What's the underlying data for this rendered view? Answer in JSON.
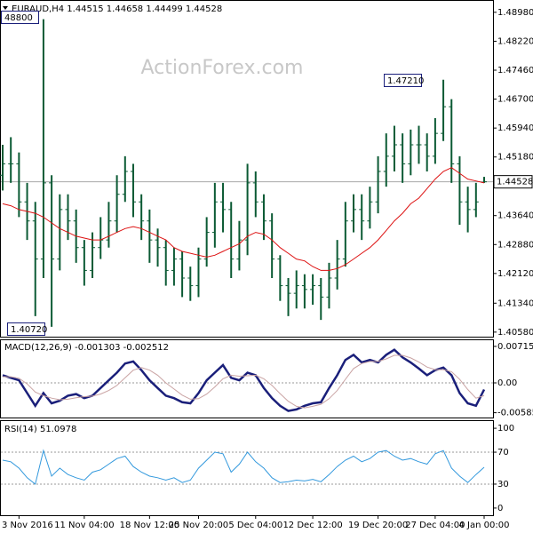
{
  "chart_data": [
    {
      "type": "ohlc",
      "title": "EURAUD,H4  1.44515 1.44658 1.44499 1.44528",
      "watermark": "ActionForex.com",
      "categories": [
        null,
        null,
        "3 Nov 2016",
        null,
        null,
        null,
        null,
        null,
        null,
        null,
        "11 Nov 04:00",
        null,
        null,
        null,
        null,
        null,
        null,
        null,
        "18 Nov 12:00",
        null,
        null,
        null,
        null,
        null,
        "25 Nov 20:00",
        null,
        null,
        null,
        null,
        null,
        null,
        "5 Dec 04:00",
        null,
        null,
        null,
        null,
        null,
        null,
        "12 Dec 12:00",
        null,
        null,
        null,
        null,
        null,
        null,
        null,
        "19 Dec 20:00",
        null,
        null,
        null,
        null,
        null,
        null,
        "27 Dec 04:00",
        null,
        null,
        null,
        null,
        null,
        "4 Jan 00:00"
      ],
      "open": [
        1.447,
        1.45,
        1.45,
        1.44,
        1.435,
        1.425,
        1.445,
        1.425,
        1.438,
        1.435,
        1.428,
        1.422,
        1.428,
        1.43,
        1.435,
        1.442,
        1.448,
        1.44,
        1.435,
        1.43,
        1.428,
        1.422,
        1.425,
        1.42,
        1.418,
        1.425,
        1.432,
        1.44,
        1.438,
        1.425,
        1.43,
        1.445,
        1.44,
        1.435,
        1.425,
        1.418,
        1.416,
        1.418,
        1.417,
        1.418,
        1.415,
        1.42,
        1.425,
        1.435,
        1.438,
        1.435,
        1.44,
        1.448,
        1.452,
        1.455,
        1.45,
        1.455,
        1.455,
        1.452,
        1.458,
        1.465,
        1.45,
        1.44,
        1.438,
        1.44515
      ],
      "high": [
        1.455,
        1.457,
        1.453,
        1.445,
        1.44,
        1.488,
        1.447,
        1.442,
        1.442,
        1.438,
        1.43,
        1.432,
        1.436,
        1.44,
        1.447,
        1.452,
        1.45,
        1.442,
        1.438,
        1.433,
        1.43,
        1.428,
        1.427,
        1.423,
        1.428,
        1.436,
        1.445,
        1.445,
        1.44,
        1.435,
        1.45,
        1.448,
        1.442,
        1.437,
        1.426,
        1.42,
        1.422,
        1.421,
        1.421,
        1.42,
        1.424,
        1.43,
        1.44,
        1.442,
        1.442,
        1.444,
        1.452,
        1.458,
        1.46,
        1.458,
        1.459,
        1.46,
        1.458,
        1.462,
        1.4721,
        1.467,
        1.452,
        1.444,
        1.445,
        1.44658
      ],
      "low": [
        1.443,
        1.445,
        1.436,
        1.43,
        1.41,
        1.42,
        1.4072,
        1.422,
        1.43,
        1.424,
        1.418,
        1.42,
        1.425,
        1.428,
        1.432,
        1.44,
        1.436,
        1.43,
        1.424,
        1.423,
        1.418,
        1.418,
        1.415,
        1.414,
        1.415,
        1.423,
        1.428,
        1.432,
        1.42,
        1.422,
        1.426,
        1.436,
        1.43,
        1.42,
        1.414,
        1.41,
        1.412,
        1.412,
        1.413,
        1.409,
        1.412,
        1.417,
        1.423,
        1.432,
        1.43,
        1.433,
        1.437,
        1.444,
        1.448,
        1.445,
        1.447,
        1.45,
        1.448,
        1.45,
        1.456,
        1.445,
        1.434,
        1.432,
        1.436,
        1.44499
      ],
      "close": [
        1.45,
        1.45,
        1.44,
        1.435,
        1.425,
        1.445,
        1.425,
        1.438,
        1.435,
        1.428,
        1.422,
        1.428,
        1.43,
        1.435,
        1.442,
        1.448,
        1.44,
        1.435,
        1.43,
        1.428,
        1.422,
        1.425,
        1.42,
        1.418,
        1.425,
        1.432,
        1.44,
        1.438,
        1.425,
        1.43,
        1.445,
        1.44,
        1.435,
        1.425,
        1.418,
        1.416,
        1.418,
        1.417,
        1.418,
        1.415,
        1.42,
        1.425,
        1.435,
        1.438,
        1.435,
        1.44,
        1.448,
        1.452,
        1.455,
        1.45,
        1.455,
        1.455,
        1.452,
        1.458,
        1.465,
        1.45,
        1.44,
        1.438,
        1.44,
        1.44528
      ],
      "color": "#0b5a34",
      "ma": [
        1.4395,
        1.439,
        1.438,
        1.4375,
        1.437,
        1.436,
        1.4345,
        1.433,
        1.432,
        1.431,
        1.4305,
        1.43,
        1.43,
        1.431,
        1.432,
        1.433,
        1.4335,
        1.433,
        1.432,
        1.431,
        1.43,
        1.428,
        1.427,
        1.4265,
        1.426,
        1.4255,
        1.426,
        1.427,
        1.428,
        1.429,
        1.431,
        1.432,
        1.4315,
        1.43,
        1.428,
        1.4265,
        1.425,
        1.4245,
        1.423,
        1.422,
        1.422,
        1.4225,
        1.4235,
        1.425,
        1.4265,
        1.428,
        1.43,
        1.4325,
        1.435,
        1.437,
        1.4395,
        1.441,
        1.4435,
        1.446,
        1.448,
        1.449,
        1.4475,
        1.446,
        1.4455,
        1.445
      ],
      "ma_color": "#dd1111",
      "last_price": 1.44528,
      "annotations": [
        "48800",
        "1.40720",
        "1.47210"
      ],
      "ylim": [
        1.4046,
        1.4928
      ],
      "yticks": [
        {
          "value": 1.4898,
          "label": "1.48980"
        },
        {
          "value": 1.4822,
          "label": "1.48220"
        },
        {
          "value": 1.4746,
          "label": "1.47460"
        },
        {
          "value": 1.467,
          "label": "1.46700"
        },
        {
          "value": 1.4594,
          "label": "1.45940"
        },
        {
          "value": 1.4518,
          "label": "1.45180"
        },
        {
          "value": 1.4364,
          "label": "1.43640"
        },
        {
          "value": 1.4288,
          "label": "1.42880"
        },
        {
          "value": 1.4212,
          "label": "1.42120"
        },
        {
          "value": 1.4134,
          "label": "1.41340"
        },
        {
          "value": 1.4058,
          "label": "1.40580"
        }
      ]
    },
    {
      "type": "line",
      "title": "MACD(12,26,9) -0.001303 -0.002512",
      "series": [
        {
          "color": "#1a1f7a",
          "values": [
            0.0015,
            0.001,
            0.0005,
            -0.002,
            -0.0045,
            -0.002,
            -0.004,
            -0.0035,
            -0.0025,
            -0.0022,
            -0.003,
            -0.0025,
            -0.001,
            0.0005,
            0.002,
            0.0038,
            0.0042,
            0.0025,
            0.0005,
            -0.001,
            -0.0025,
            -0.003,
            -0.0038,
            -0.004,
            -0.002,
            0.0005,
            0.002,
            0.0035,
            0.001,
            0.0005,
            0.002,
            0.0015,
            -0.001,
            -0.003,
            -0.0045,
            -0.0055,
            -0.0052,
            -0.0045,
            -0.004,
            -0.0038,
            -0.001,
            0.0015,
            0.0045,
            0.0055,
            0.004,
            0.0045,
            0.004,
            0.0055,
            0.0065,
            0.005,
            0.004,
            0.0028,
            0.0015,
            0.0025,
            0.003,
            0.0015,
            -0.002,
            -0.004,
            -0.0045,
            -0.001303
          ]
        },
        {
          "color": "#c9a3a3",
          "values": [
            0.0012,
            0.0012,
            0.0009,
            -0.0002,
            -0.0018,
            -0.0025,
            -0.003,
            -0.0033,
            -0.0032,
            -0.0029,
            -0.0027,
            -0.0026,
            -0.0022,
            -0.0015,
            -0.0005,
            0.001,
            0.0025,
            0.003,
            0.0025,
            0.0015,
            0,
            -0.0012,
            -0.0024,
            -0.0032,
            -0.0031,
            -0.0022,
            -0.0008,
            0.0008,
            0.0015,
            0.0013,
            0.0014,
            0.0015,
            0.0008,
            -0.0005,
            -0.0021,
            -0.0036,
            -0.0046,
            -0.0049,
            -0.0046,
            -0.0042,
            -0.0031,
            -0.0015,
            0.0007,
            0.0028,
            0.0038,
            0.0042,
            0.0042,
            0.0047,
            0.0054,
            0.0054,
            0.0049,
            0.0041,
            0.0031,
            0.0026,
            0.0026,
            0.0022,
            0.0007,
            -0.0013,
            -0.003,
            -0.002512
          ]
        }
      ],
      "levels": [
        0
      ],
      "ylim": [
        -0.00679,
        0.00836
      ],
      "yticks": [
        {
          "value": 0.007152,
          "label": "0.007152"
        },
        {
          "value": 0,
          "label": "0.00"
        },
        {
          "value": -0.00585,
          "label": "-0.00585"
        }
      ]
    },
    {
      "type": "line",
      "title": "RSI(14) 51.0978",
      "series": [
        {
          "color": "#3399dd",
          "values": [
            60,
            58,
            50,
            38,
            30,
            72,
            40,
            50,
            42,
            38,
            35,
            45,
            48,
            55,
            62,
            65,
            52,
            45,
            40,
            38,
            35,
            38,
            32,
            35,
            50,
            60,
            70,
            68,
            45,
            55,
            70,
            58,
            50,
            38,
            32,
            33,
            35,
            34,
            36,
            33,
            42,
            52,
            60,
            65,
            58,
            62,
            70,
            72,
            65,
            60,
            62,
            58,
            55,
            68,
            72,
            50,
            40,
            32,
            42,
            51.0978
          ]
        }
      ],
      "levels": [
        70,
        30
      ],
      "ylim": [
        -9,
        109
      ],
      "yticks": [
        100,
        70,
        30,
        0
      ]
    }
  ]
}
